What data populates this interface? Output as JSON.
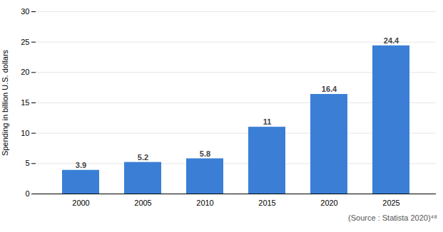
{
  "chart_data": {
    "type": "bar",
    "categories": [
      "2000",
      "2005",
      "2010",
      "2015",
      "2020",
      "2025"
    ],
    "values": [
      3.9,
      5.2,
      5.8,
      11,
      16.4,
      24.4
    ],
    "color": "#3a7fd5",
    "ylabel": "Spending in billion U.S. dollars",
    "ylim": [
      0,
      30
    ],
    "yticks": [
      0,
      5,
      10,
      15,
      20,
      25,
      30
    ],
    "grid": true,
    "data_labels": true,
    "caption": "(Source : Statista 2020)⁴⁸"
  }
}
